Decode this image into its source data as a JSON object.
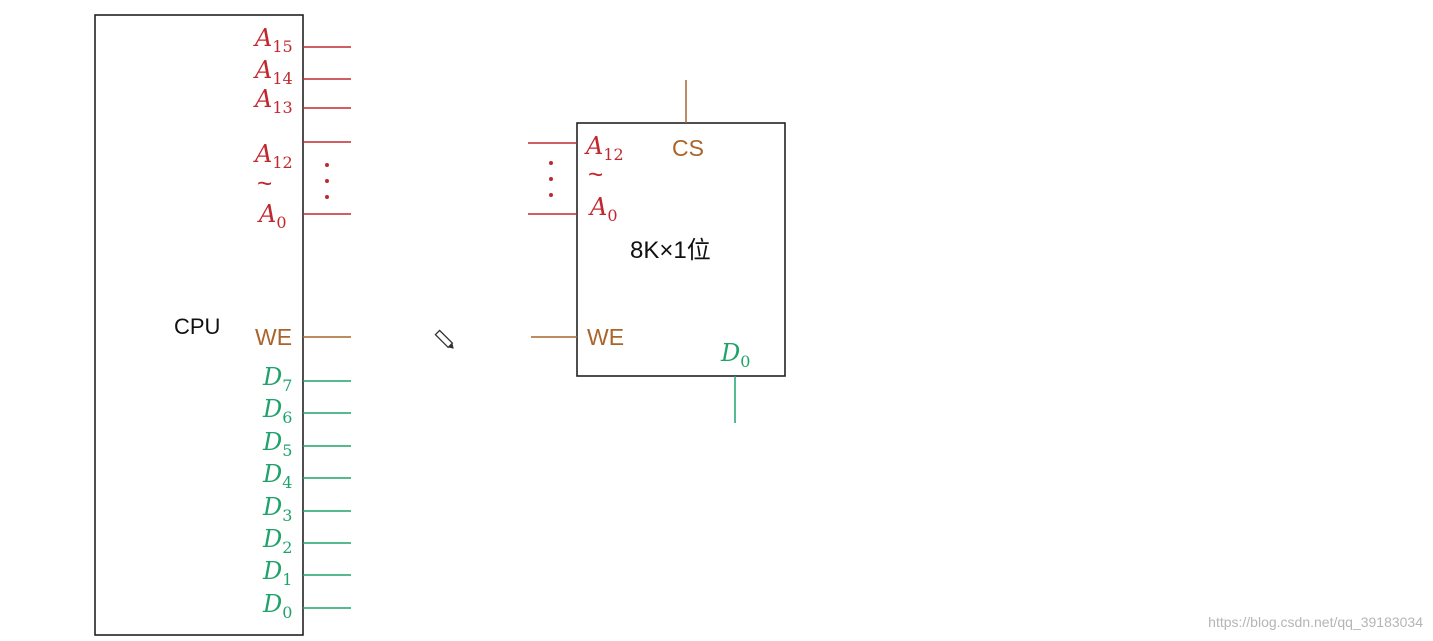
{
  "colors": {
    "address": "#c0282f",
    "control": "#a9652a",
    "data": "#1fa36a",
    "box": "#222222",
    "text": "#111111"
  },
  "cpu": {
    "label": "CPU",
    "address_pins": [
      {
        "base": "A",
        "sub": "15"
      },
      {
        "base": "A",
        "sub": "14"
      },
      {
        "base": "A",
        "sub": "13"
      }
    ],
    "address_range": {
      "top": {
        "base": "A",
        "sub": "12"
      },
      "tilde": "~",
      "bottom": {
        "base": "A",
        "sub": "0"
      },
      "dots": "⋮"
    },
    "control_pin": "WE",
    "data_pins": [
      {
        "base": "D",
        "sub": "7"
      },
      {
        "base": "D",
        "sub": "6"
      },
      {
        "base": "D",
        "sub": "5"
      },
      {
        "base": "D",
        "sub": "4"
      },
      {
        "base": "D",
        "sub": "3"
      },
      {
        "base": "D",
        "sub": "2"
      },
      {
        "base": "D",
        "sub": "1"
      },
      {
        "base": "D",
        "sub": "0"
      }
    ]
  },
  "chip": {
    "label": "8K×1位",
    "cs_label": "CS",
    "address_range": {
      "top": {
        "base": "A",
        "sub": "12"
      },
      "tilde": "~",
      "bottom": {
        "base": "A",
        "sub": "0"
      },
      "dots": "⋮"
    },
    "control_pin": "WE",
    "data_pin": {
      "base": "D",
      "sub": "0"
    }
  },
  "pen_cursor_icon": "pencil-icon",
  "watermark": "https://blog.csdn.net/qq_39183034"
}
